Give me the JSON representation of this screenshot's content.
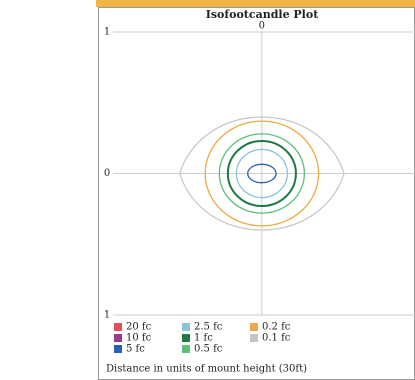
{
  "chart_data": {
    "type": "contour",
    "title": "Isofootcandle Plot",
    "xlabel": "Distance in units of mount height (30ft)",
    "xlim": [
      -1.05,
      1.08
    ],
    "ylim": [
      -1,
      1
    ],
    "xticks": [
      0
    ],
    "yticks": [
      {
        "value": 1,
        "label": "1"
      },
      0,
      {
        "value": -1,
        "label": "1"
      }
    ],
    "grid": true,
    "series": [
      {
        "name": "20 fc",
        "color": "#e0505a"
      },
      {
        "name": "10 fc",
        "color": "#9a3a8a"
      },
      {
        "name": "5 fc",
        "color": "#2a5fb0",
        "extent": [
          0.1,
          0.065
        ]
      },
      {
        "name": "2.5 fc",
        "color": "#8cc4dc",
        "extent": [
          0.18,
          0.17
        ]
      },
      {
        "name": "1 fc",
        "color": "#1f7a45",
        "extent": [
          0.24,
          0.23
        ]
      },
      {
        "name": "0.5 fc",
        "color": "#5cc07a",
        "extent": [
          0.3,
          0.28
        ]
      },
      {
        "name": "0.2 fc",
        "color": "#f0a840",
        "extent": [
          0.4,
          0.37
        ]
      },
      {
        "name": "0.1 fc",
        "color": "#c4c4c4",
        "extent": [
          0.58,
          0.4
        ],
        "shape": "lens"
      }
    ]
  }
}
